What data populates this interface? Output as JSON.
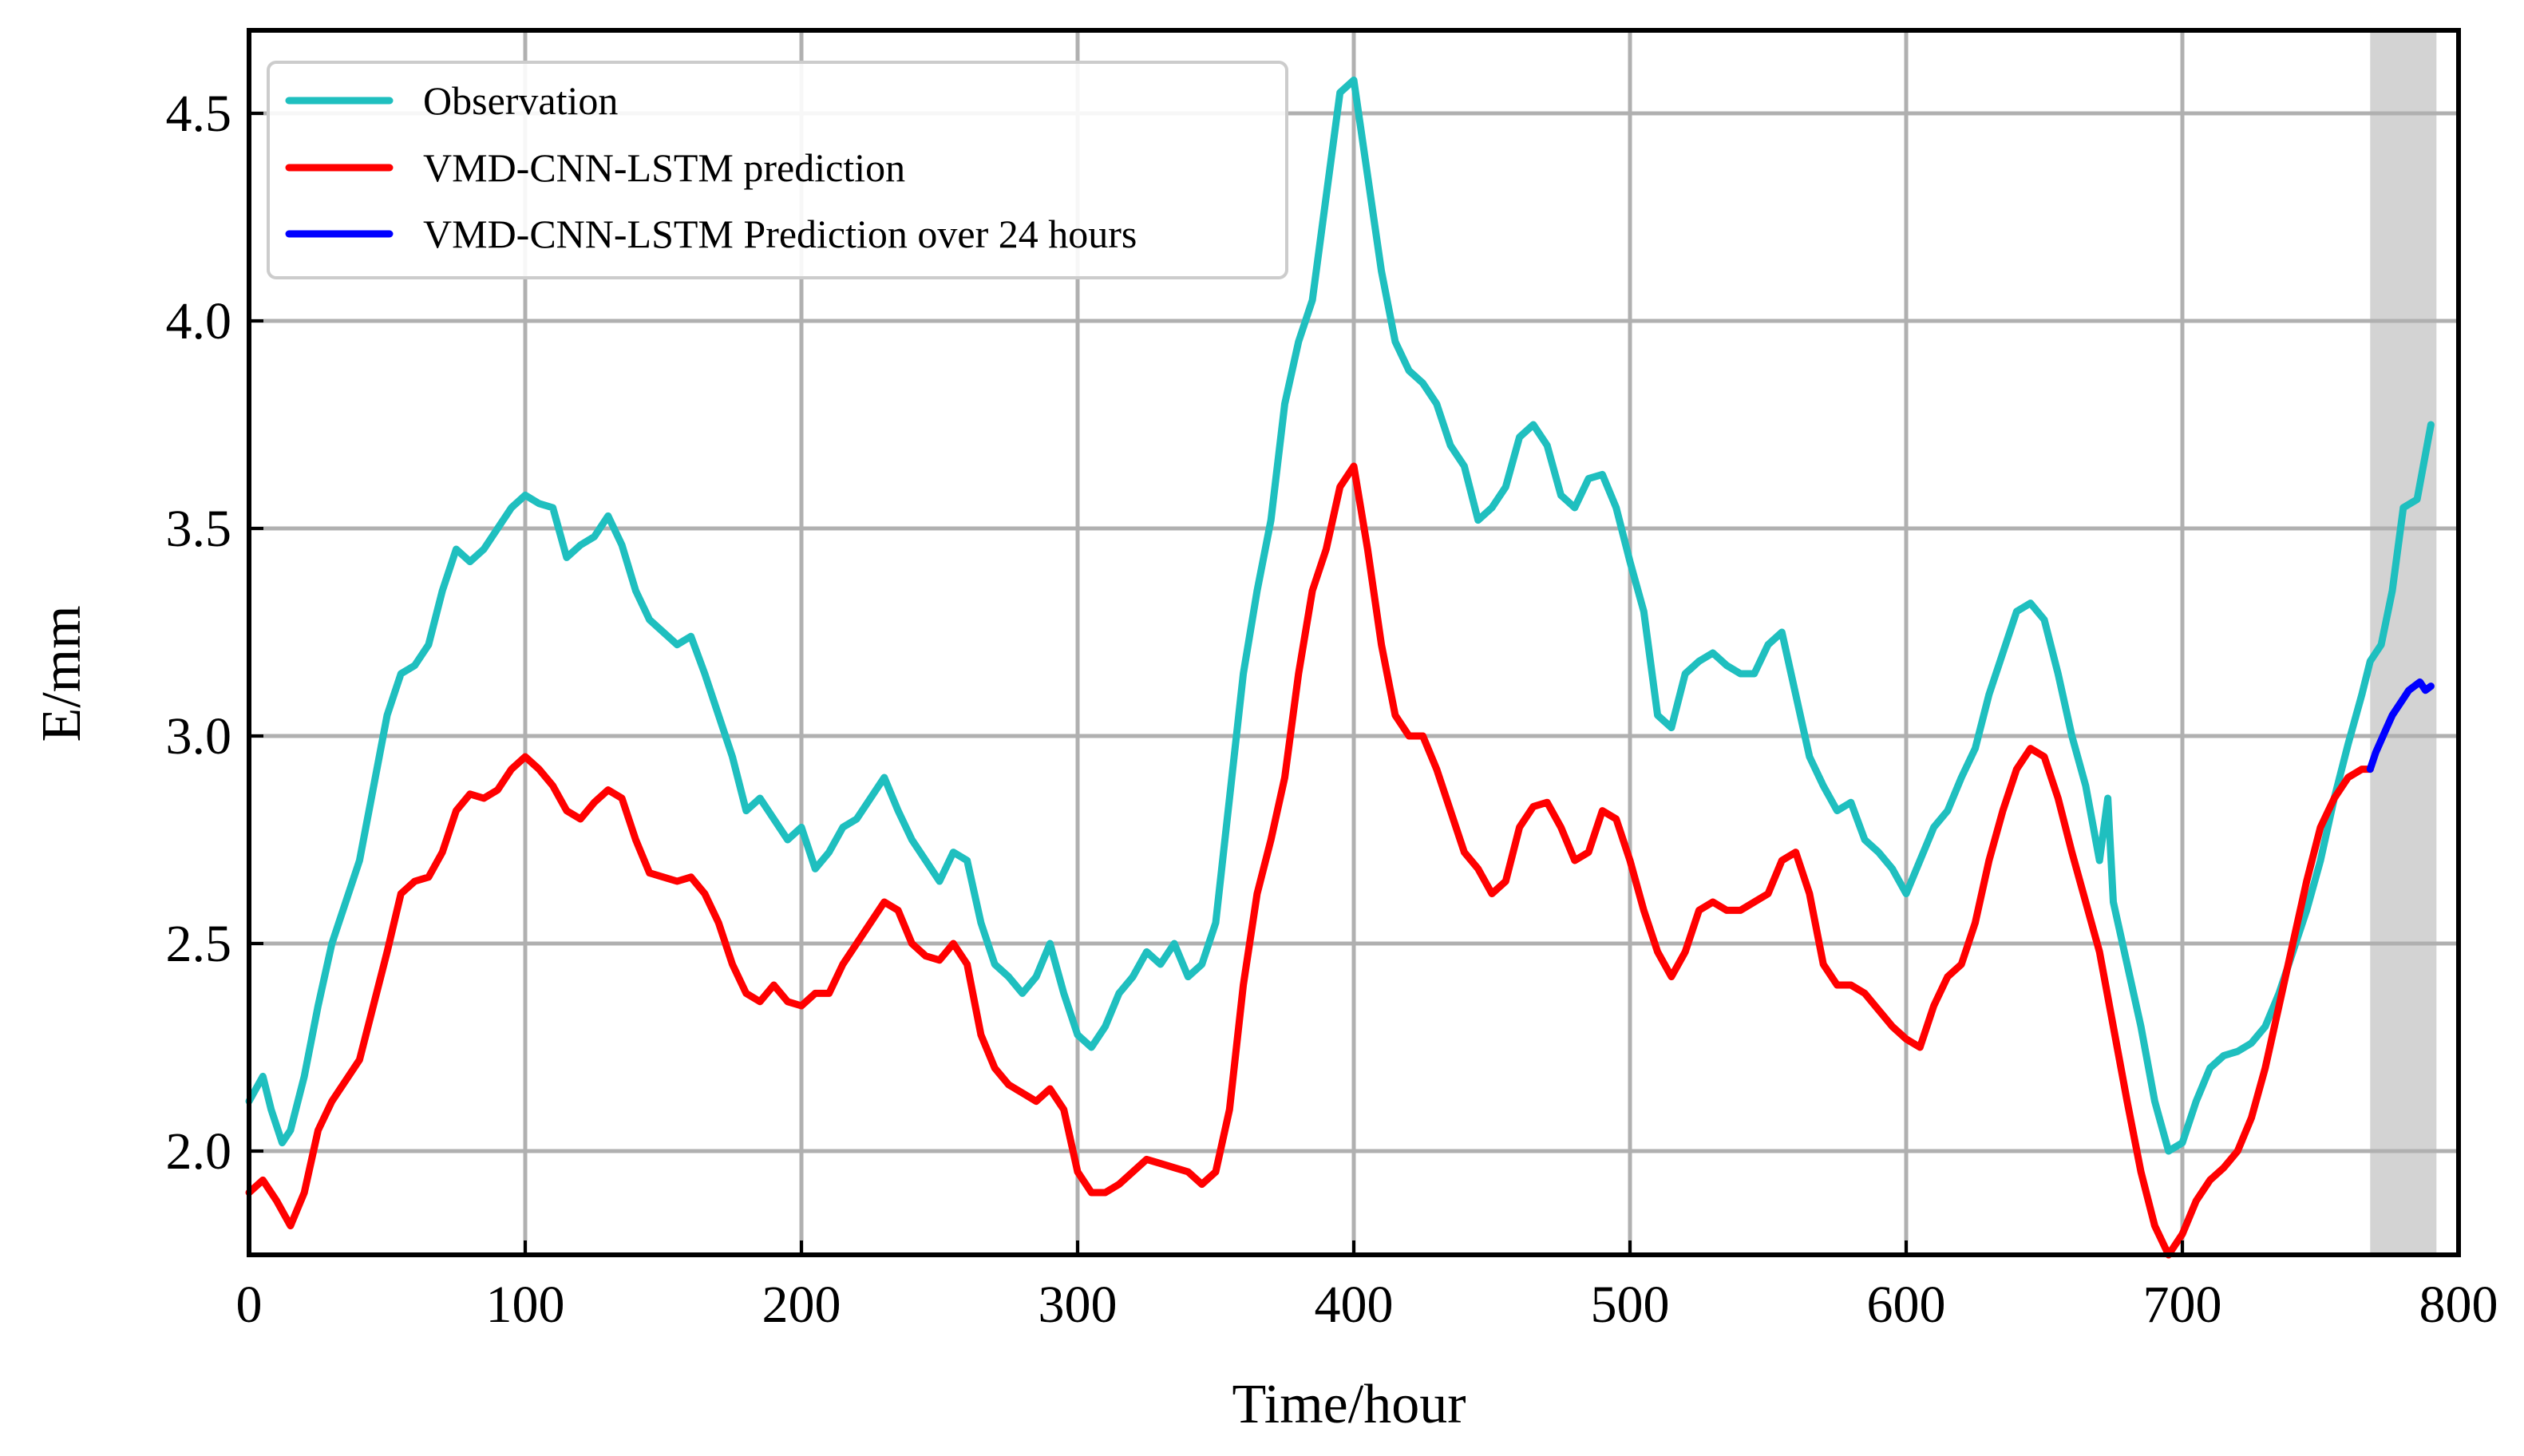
{
  "chart_data": {
    "type": "line",
    "title": "",
    "xlabel": "Time/hour",
    "ylabel": "E/mm",
    "xlim": [
      0,
      800
    ],
    "ylim": [
      1.75,
      4.7
    ],
    "xticks": [
      0,
      100,
      200,
      300,
      400,
      500,
      600,
      700,
      800
    ],
    "xtick_labels": [
      "0",
      "100",
      "200",
      "300",
      "400",
      "500",
      "600",
      "700",
      "800"
    ],
    "yticks": [
      2.0,
      2.5,
      3.0,
      3.5,
      4.0,
      4.5
    ],
    "ytick_labels": [
      "2.0",
      "2.5",
      "3.0",
      "3.5",
      "4.0",
      "4.5"
    ],
    "grid": true,
    "legend_position": "top-left",
    "shaded_region": {
      "x_start": 768,
      "x_end": 792,
      "color": "#d3d3d3"
    },
    "series": [
      {
        "name": "Observation",
        "color": "#1fbfbf",
        "x": [
          0,
          5,
          8,
          12,
          15,
          20,
          25,
          30,
          40,
          50,
          55,
          60,
          65,
          70,
          75,
          80,
          85,
          90,
          95,
          100,
          105,
          110,
          115,
          120,
          125,
          130,
          135,
          140,
          145,
          150,
          155,
          160,
          165,
          170,
          175,
          180,
          185,
          190,
          195,
          200,
          205,
          210,
          215,
          220,
          225,
          230,
          235,
          240,
          245,
          250,
          255,
          260,
          265,
          270,
          275,
          280,
          285,
          290,
          295,
          300,
          305,
          310,
          315,
          320,
          325,
          330,
          335,
          340,
          345,
          350,
          355,
          360,
          365,
          370,
          375,
          380,
          385,
          390,
          395,
          400,
          405,
          410,
          415,
          420,
          425,
          430,
          435,
          440,
          445,
          450,
          455,
          460,
          465,
          470,
          475,
          480,
          485,
          490,
          495,
          500,
          505,
          510,
          515,
          520,
          525,
          530,
          535,
          540,
          545,
          550,
          555,
          560,
          565,
          570,
          575,
          580,
          585,
          590,
          595,
          600,
          605,
          610,
          615,
          620,
          625,
          630,
          635,
          640,
          645,
          650,
          655,
          660,
          665,
          670,
          673,
          675,
          680,
          685,
          690,
          695,
          700,
          705,
          710,
          715,
          720,
          725,
          730,
          735,
          740,
          745,
          750,
          755,
          760,
          765,
          768,
          772,
          776,
          780,
          785,
          790
        ],
        "y": [
          2.12,
          2.18,
          2.1,
          2.02,
          2.05,
          2.18,
          2.35,
          2.5,
          2.7,
          3.05,
          3.15,
          3.17,
          3.22,
          3.35,
          3.45,
          3.42,
          3.45,
          3.5,
          3.55,
          3.58,
          3.56,
          3.55,
          3.43,
          3.46,
          3.48,
          3.53,
          3.46,
          3.35,
          3.28,
          3.25,
          3.22,
          3.24,
          3.15,
          3.05,
          2.95,
          2.82,
          2.85,
          2.8,
          2.75,
          2.78,
          2.68,
          2.72,
          2.78,
          2.8,
          2.85,
          2.9,
          2.82,
          2.75,
          2.7,
          2.65,
          2.72,
          2.7,
          2.55,
          2.45,
          2.42,
          2.38,
          2.42,
          2.5,
          2.38,
          2.28,
          2.25,
          2.3,
          2.38,
          2.42,
          2.48,
          2.45,
          2.5,
          2.42,
          2.45,
          2.55,
          2.85,
          3.15,
          3.35,
          3.52,
          3.8,
          3.95,
          4.05,
          4.3,
          4.55,
          4.58,
          4.35,
          4.12,
          3.95,
          3.88,
          3.85,
          3.8,
          3.7,
          3.65,
          3.52,
          3.55,
          3.6,
          3.72,
          3.75,
          3.7,
          3.58,
          3.55,
          3.62,
          3.63,
          3.55,
          3.42,
          3.3,
          3.05,
          3.02,
          3.15,
          3.18,
          3.2,
          3.17,
          3.15,
          3.15,
          3.22,
          3.25,
          3.1,
          2.95,
          2.88,
          2.82,
          2.84,
          2.75,
          2.72,
          2.68,
          2.62,
          2.7,
          2.78,
          2.82,
          2.9,
          2.97,
          3.1,
          3.2,
          3.3,
          3.32,
          3.28,
          3.15,
          3.0,
          2.88,
          2.7,
          2.85,
          2.6,
          2.45,
          2.3,
          2.12,
          2.0,
          2.02,
          2.12,
          2.2,
          2.23,
          2.24,
          2.26,
          2.3,
          2.38,
          2.48,
          2.58,
          2.7,
          2.85,
          2.98,
          3.1,
          3.18,
          3.22,
          3.35,
          3.55,
          3.57,
          3.75
        ]
      },
      {
        "name": "VMD-CNN-LSTM prediction",
        "color": "#ff0000",
        "x": [
          0,
          5,
          10,
          15,
          20,
          25,
          30,
          40,
          50,
          55,
          60,
          65,
          70,
          75,
          80,
          85,
          90,
          95,
          100,
          105,
          110,
          115,
          120,
          125,
          130,
          135,
          140,
          145,
          150,
          155,
          160,
          165,
          170,
          175,
          180,
          185,
          190,
          195,
          200,
          205,
          210,
          215,
          220,
          225,
          230,
          235,
          240,
          245,
          250,
          255,
          260,
          265,
          270,
          275,
          280,
          285,
          290,
          295,
          300,
          305,
          310,
          315,
          320,
          325,
          330,
          335,
          340,
          345,
          350,
          355,
          360,
          365,
          370,
          375,
          380,
          385,
          390,
          395,
          400,
          405,
          410,
          415,
          420,
          425,
          430,
          435,
          440,
          445,
          450,
          455,
          460,
          465,
          470,
          475,
          480,
          485,
          490,
          495,
          500,
          505,
          510,
          515,
          520,
          525,
          530,
          535,
          540,
          545,
          550,
          555,
          560,
          565,
          570,
          575,
          580,
          585,
          590,
          595,
          600,
          605,
          610,
          615,
          620,
          625,
          630,
          635,
          640,
          645,
          650,
          655,
          660,
          665,
          670,
          675,
          680,
          685,
          690,
          695,
          700,
          705,
          710,
          715,
          720,
          725,
          730,
          735,
          740,
          745,
          750,
          755,
          760,
          765,
          768
        ],
        "y": [
          1.9,
          1.93,
          1.88,
          1.82,
          1.9,
          2.05,
          2.12,
          2.22,
          2.48,
          2.62,
          2.65,
          2.66,
          2.72,
          2.82,
          2.86,
          2.85,
          2.87,
          2.92,
          2.95,
          2.92,
          2.88,
          2.82,
          2.8,
          2.84,
          2.87,
          2.85,
          2.75,
          2.67,
          2.66,
          2.65,
          2.66,
          2.62,
          2.55,
          2.45,
          2.38,
          2.36,
          2.4,
          2.36,
          2.35,
          2.38,
          2.38,
          2.45,
          2.5,
          2.55,
          2.6,
          2.58,
          2.5,
          2.47,
          2.46,
          2.5,
          2.45,
          2.28,
          2.2,
          2.16,
          2.14,
          2.12,
          2.15,
          2.1,
          1.95,
          1.9,
          1.9,
          1.92,
          1.95,
          1.98,
          1.97,
          1.96,
          1.95,
          1.92,
          1.95,
          2.1,
          2.4,
          2.62,
          2.75,
          2.9,
          3.15,
          3.35,
          3.45,
          3.6,
          3.65,
          3.45,
          3.22,
          3.05,
          3.0,
          3.0,
          2.92,
          2.82,
          2.72,
          2.68,
          2.62,
          2.65,
          2.78,
          2.83,
          2.84,
          2.78,
          2.7,
          2.72,
          2.82,
          2.8,
          2.7,
          2.58,
          2.48,
          2.42,
          2.48,
          2.58,
          2.6,
          2.58,
          2.58,
          2.6,
          2.62,
          2.7,
          2.72,
          2.62,
          2.45,
          2.4,
          2.4,
          2.38,
          2.34,
          2.3,
          2.27,
          2.25,
          2.35,
          2.42,
          2.45,
          2.55,
          2.7,
          2.82,
          2.92,
          2.97,
          2.95,
          2.85,
          2.72,
          2.6,
          2.48,
          2.3,
          2.12,
          1.95,
          1.82,
          1.75,
          1.8,
          1.88,
          1.93,
          1.96,
          2.0,
          2.08,
          2.2,
          2.35,
          2.5,
          2.65,
          2.78,
          2.85,
          2.9,
          2.92,
          2.92
        ]
      },
      {
        "name": "VMD-CNN-LSTM Prediction over 24 hours",
        "color": "#0000ff",
        "x": [
          768,
          770,
          772,
          774,
          776,
          778,
          780,
          782,
          784,
          786,
          788,
          790
        ],
        "y": [
          2.92,
          2.96,
          2.99,
          3.02,
          3.05,
          3.07,
          3.09,
          3.11,
          3.12,
          3.13,
          3.11,
          3.12
        ]
      }
    ]
  }
}
